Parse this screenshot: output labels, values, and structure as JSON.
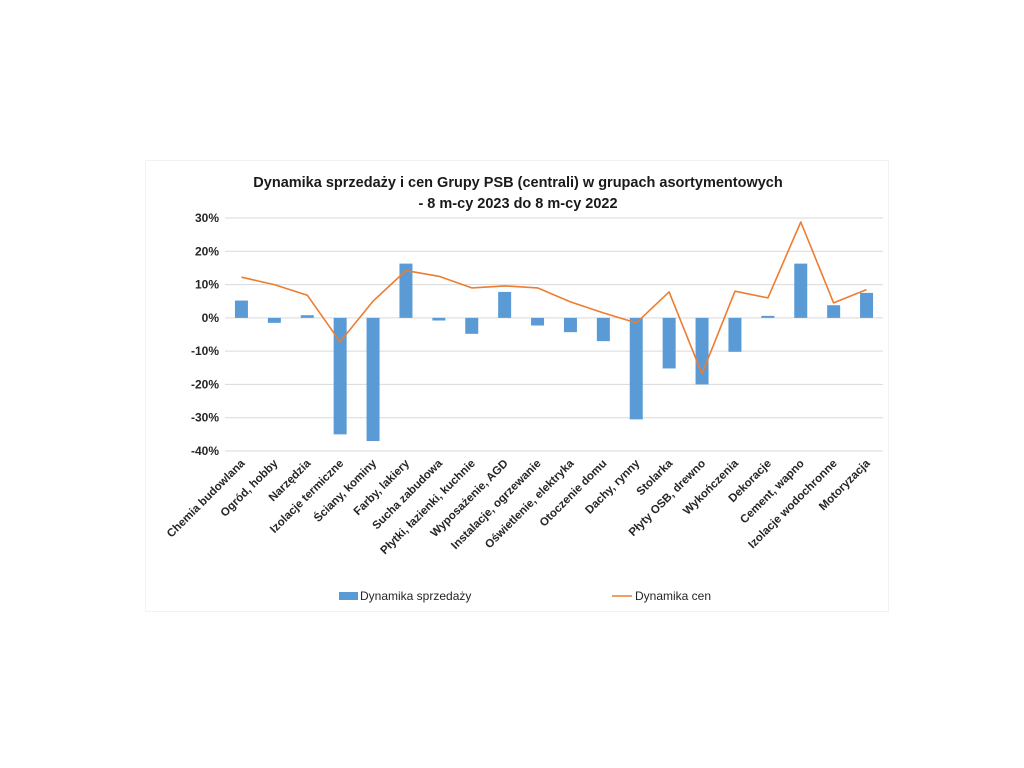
{
  "chart_data": {
    "type": "bar",
    "title": [
      "Dynamika sprzedaży i cen Grupy PSB (centrali) w grupach asortymentowych",
      "- 8 m-cy 2023 do 8 m-cy 2022"
    ],
    "ylim": [
      -0.4,
      0.3
    ],
    "yticks": [
      0.3,
      0.2,
      0.1,
      0,
      -0.1,
      -0.2,
      -0.3,
      -0.4
    ],
    "ytick_labels": [
      "30%",
      "20%",
      "10%",
      "0%",
      "-10%",
      "-20%",
      "-30%",
      "-40%"
    ],
    "grid": true,
    "legend_position": "bottom",
    "categories": [
      "Chemia budowlana",
      "Ogród, hobby",
      "Narzędzia",
      "Izolacje termiczne",
      "Ściany, kominy",
      "Farby, lakiery",
      "Sucha zabudowa",
      "Płytki, łazienki, kuchnie",
      "Wyposażenie, AGD",
      "Instalacje, ogrzewanie",
      "Oświetlenie, elektryka",
      "Otoczenie domu",
      "Dachy, rynny",
      "Stolarka",
      "Płyty OSB, drewno",
      "Wykończenia",
      "Dekoracje",
      "Cement, wapno",
      "Izolacje wodochronne",
      "Motoryzacja"
    ],
    "series": [
      {
        "name": "Dynamika sprzedaży",
        "kind": "bar",
        "color": "#5b9bd5",
        "values": [
          0.052,
          -0.015,
          0.008,
          -0.35,
          -0.37,
          0.163,
          -0.008,
          -0.048,
          0.078,
          -0.023,
          -0.043,
          -0.07,
          -0.305,
          -0.152,
          -0.2,
          -0.102,
          0.006,
          0.163,
          0.038,
          0.075
        ]
      },
      {
        "name": "Dynamika cen",
        "kind": "line",
        "color": "#ed7d31",
        "values": [
          0.122,
          0.1,
          0.068,
          -0.072,
          0.05,
          0.142,
          0.125,
          0.09,
          0.096,
          0.09,
          0.048,
          0.015,
          -0.015,
          0.078,
          -0.168,
          0.08,
          0.06,
          0.288,
          0.045,
          0.085
        ]
      }
    ]
  }
}
